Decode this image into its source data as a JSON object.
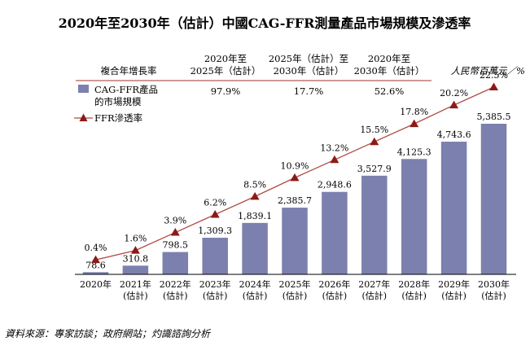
{
  "chart_data": {
    "type": "bar",
    "title": "2020年至2030年（估計）中國CAG-FFR測量產品市場規模及滲透率",
    "unit_label": "人民幣百萬元／%",
    "categories": [
      [
        "2020年",
        ""
      ],
      [
        "2021年",
        "(估計)"
      ],
      [
        "2022年",
        "(估計)"
      ],
      [
        "2023年",
        "(估計)"
      ],
      [
        "2024年",
        "(估計)"
      ],
      [
        "2025年",
        "(估計)"
      ],
      [
        "2026年",
        "(估計)"
      ],
      [
        "2027年",
        "(估計)"
      ],
      [
        "2028年",
        "(估計)"
      ],
      [
        "2029年",
        "(估計)"
      ],
      [
        "2030年",
        "(估計)"
      ]
    ],
    "series": [
      {
        "name": "CAG-FFR產品的市場規模",
        "type": "bar",
        "color": "#7b80ae",
        "values": [
          78.6,
          310.8,
          798.5,
          1309.3,
          1839.1,
          2385.7,
          2948.6,
          3527.9,
          4125.3,
          4743.6,
          5385.5
        ],
        "labels": [
          "78.6",
          "310.8",
          "798.5",
          "1,309.3",
          "1,839.1",
          "2,385.7",
          "2,948.6",
          "3,527.9",
          "4,125.3",
          "4,743.6",
          "5,385.5"
        ]
      },
      {
        "name": "FFR滲透率",
        "type": "line",
        "color": "#b04a45",
        "marker_color": "#8b1a1a",
        "values": [
          0.4,
          1.6,
          3.9,
          6.2,
          8.5,
          10.9,
          13.2,
          15.5,
          17.8,
          20.2,
          22.5
        ],
        "labels": [
          "0.4%",
          "1.6%",
          "3.9%",
          "6.2%",
          "8.5%",
          "10.9%",
          "13.2%",
          "15.5%",
          "17.8%",
          "20.2%",
          "22.5%"
        ]
      }
    ],
    "legend": [
      {
        "lines": [
          "CAG-FFR產品",
          "的市場規模"
        ],
        "kind": "bar"
      },
      {
        "lines": [
          "FFR滲透率"
        ],
        "kind": "line"
      }
    ],
    "cagr_table": {
      "header": "複合年增長率",
      "columns": [
        {
          "line1": "2020年至",
          "line2": "2025年（估計）",
          "value": "97.9%"
        },
        {
          "line1": "2025年（估計）至",
          "line2": "2030年（估計）",
          "value": "17.7%"
        },
        {
          "line1": "2020年至",
          "line2": "2030年（估計）",
          "value": "52.6%"
        }
      ]
    },
    "source": "資料來源：專家訪談；政府網站；灼識諮詢分析"
  }
}
